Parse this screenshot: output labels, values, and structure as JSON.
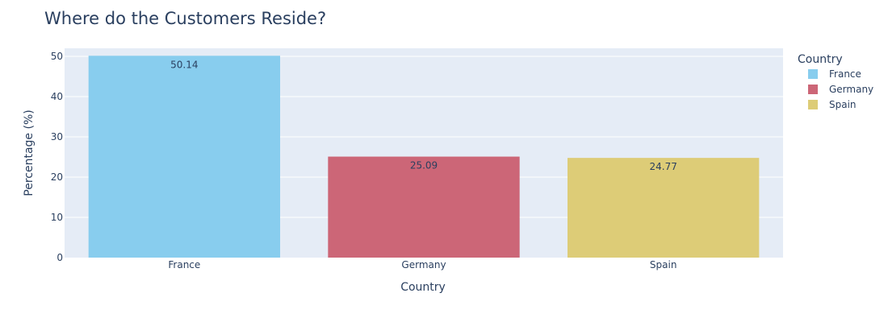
{
  "chart_data": {
    "type": "bar",
    "title": "Where do the Customers Reside?",
    "xlabel": "Country",
    "ylabel": "Percentage (%)",
    "categories": [
      "France",
      "Germany",
      "Spain"
    ],
    "values": [
      50.14,
      25.09,
      24.77
    ],
    "value_labels": [
      "50.14",
      "25.09",
      "24.77"
    ],
    "colors": [
      "#88cdee",
      "#cc6677",
      "#ddcc77"
    ],
    "ylim": [
      0,
      52
    ],
    "yticks": [
      0,
      10,
      20,
      30,
      40,
      50
    ],
    "ytick_labels": [
      "0",
      "10",
      "20",
      "30",
      "40",
      "50"
    ],
    "grid": true,
    "legend": {
      "title": "Country",
      "placement": "right",
      "entries": [
        "France",
        "Germany",
        "Spain"
      ]
    }
  }
}
